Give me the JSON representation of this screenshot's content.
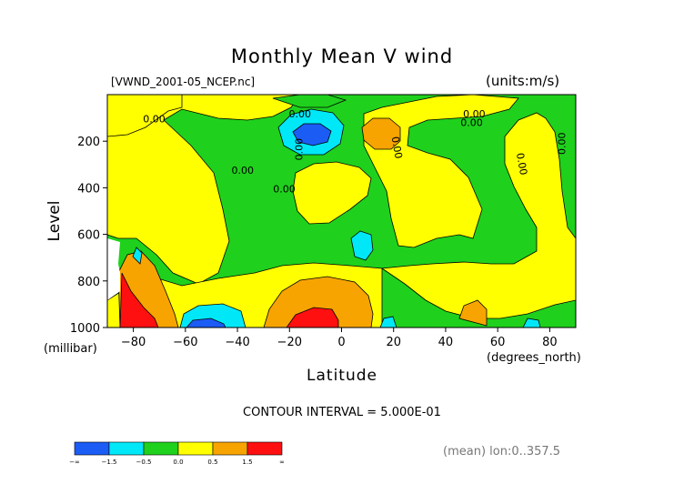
{
  "chart_data": {
    "type": "heatmap",
    "title": "Monthly Mean V wind",
    "file_label": "[VWND_2001-05_NCEP.nc]",
    "units_label": "(units:m/s)",
    "xlabel": "Latitude",
    "x_unit": "(degrees_north)",
    "ylabel": "Level",
    "y_unit": "(millibar)",
    "xlim": [
      -90,
      90
    ],
    "ylim": [
      1000,
      0
    ],
    "x_ticks": [
      -80,
      -60,
      -40,
      -20,
      0,
      20,
      40,
      60,
      80
    ],
    "y_ticks": [
      200,
      400,
      600,
      800,
      1000
    ],
    "contour_interval_label": "CONTOUR INTERVAL = 5.000E-01",
    "footer_label": "(mean) lon:0..357.5",
    "contour_line_labels": [
      "0.00",
      "0.00",
      "0.00",
      "0.00",
      "0.00",
      "0.00",
      "0.00",
      "0.00",
      "0.00",
      "0.00"
    ],
    "colorbar": {
      "tick_labels": [
        "-∞",
        "-1.5",
        "-0.5",
        "0.0",
        "0.5",
        "1.5",
        "∞"
      ],
      "colors": [
        "#1b5cf5",
        "#00e8f7",
        "#1fd11c",
        "#ffff00",
        "#f7a400",
        "#ff1010"
      ]
    }
  }
}
